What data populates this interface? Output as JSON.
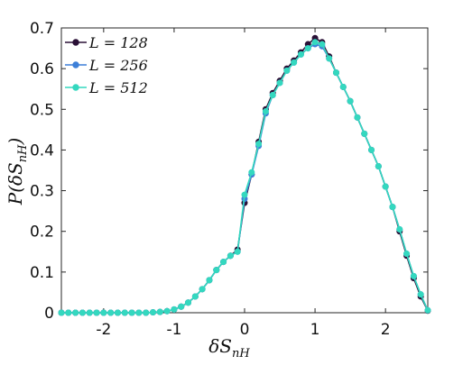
{
  "chart_data": {
    "type": "line",
    "title": "",
    "xlabel": "δS_nH",
    "ylabel": "P(δS_nH)",
    "xlim": [
      -2.6,
      2.6
    ],
    "ylim": [
      0,
      0.7
    ],
    "xticks": [
      -2,
      -1,
      0,
      1,
      2
    ],
    "xtick_labels": [
      "-2",
      "-1",
      "0",
      "1",
      "2"
    ],
    "yticks": [
      0,
      0.1,
      0.2,
      0.3,
      0.4,
      0.5,
      0.6,
      0.7
    ],
    "ytick_labels": [
      "0",
      "0.1",
      "0.2",
      "0.3",
      "0.4",
      "0.5",
      "0.6",
      "0.7"
    ],
    "grid": false,
    "legend_position": "top-left",
    "x": [
      -2.6,
      -2.5,
      -2.4,
      -2.3,
      -2.2,
      -2.1,
      -2.0,
      -1.9,
      -1.8,
      -1.7,
      -1.6,
      -1.5,
      -1.4,
      -1.3,
      -1.2,
      -1.1,
      -1.0,
      -0.9,
      -0.8,
      -0.7,
      -0.6,
      -0.5,
      -0.4,
      -0.3,
      -0.2,
      -0.1,
      0.0,
      0.1,
      0.2,
      0.3,
      0.4,
      0.5,
      0.6,
      0.7,
      0.8,
      0.9,
      1.0,
      1.1,
      1.2,
      1.3,
      1.4,
      1.5,
      1.6,
      1.7,
      1.8,
      1.9,
      2.0,
      2.1,
      2.2,
      2.3,
      2.4,
      2.5,
      2.6
    ],
    "series": [
      {
        "name": "L = 128",
        "legend_label": "L = 128",
        "color": "#2a1036",
        "marker_fill": "#2a1036",
        "values": [
          0,
          0,
          0,
          0,
          0,
          0,
          0,
          0,
          0,
          0,
          0,
          0,
          0,
          0.001,
          0.002,
          0.004,
          0.008,
          0.015,
          0.025,
          0.04,
          0.058,
          0.08,
          0.105,
          0.125,
          0.14,
          0.155,
          0.27,
          0.34,
          0.42,
          0.5,
          0.54,
          0.57,
          0.6,
          0.62,
          0.64,
          0.66,
          0.675,
          0.665,
          0.63,
          0.59,
          0.555,
          0.52,
          0.48,
          0.44,
          0.4,
          0.36,
          0.31,
          0.26,
          0.2,
          0.14,
          0.085,
          0.04,
          0.005
        ]
      },
      {
        "name": "L = 256",
        "legend_label": "L = 256",
        "color": "#3d7fd8",
        "marker_fill": "#3d7fd8",
        "values": [
          0,
          0,
          0,
          0,
          0,
          0,
          0,
          0,
          0,
          0,
          0,
          0,
          0,
          0.001,
          0.002,
          0.004,
          0.008,
          0.015,
          0.025,
          0.04,
          0.058,
          0.08,
          0.105,
          0.125,
          0.14,
          0.15,
          0.28,
          0.34,
          0.41,
          0.49,
          0.535,
          0.565,
          0.595,
          0.615,
          0.635,
          0.65,
          0.66,
          0.655,
          0.625,
          0.59,
          0.555,
          0.52,
          0.48,
          0.44,
          0.4,
          0.36,
          0.31,
          0.26,
          0.205,
          0.145,
          0.09,
          0.045,
          0.006
        ]
      },
      {
        "name": "L = 512",
        "legend_label": "L = 512",
        "color": "#34d8bf",
        "marker_fill": "#34d8bf",
        "values": [
          0,
          0,
          0,
          0,
          0,
          0,
          0,
          0,
          0,
          0,
          0,
          0,
          0,
          0.001,
          0.002,
          0.004,
          0.008,
          0.015,
          0.025,
          0.04,
          0.058,
          0.08,
          0.105,
          0.125,
          0.14,
          0.15,
          0.29,
          0.345,
          0.415,
          0.495,
          0.535,
          0.565,
          0.595,
          0.615,
          0.635,
          0.65,
          0.665,
          0.66,
          0.625,
          0.59,
          0.555,
          0.52,
          0.48,
          0.44,
          0.4,
          0.36,
          0.31,
          0.26,
          0.205,
          0.145,
          0.09,
          0.045,
          0.006
        ]
      }
    ]
  }
}
